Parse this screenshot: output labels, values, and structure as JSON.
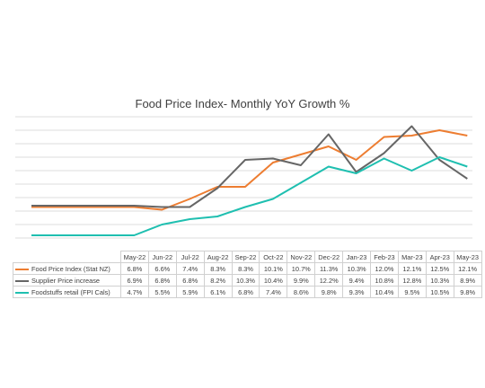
{
  "chart_data": {
    "type": "line",
    "title": "Food Price Index- Monthly YoY Growth %",
    "categories": [
      "May-22",
      "Jun-22",
      "Jul-22",
      "Aug-22",
      "Sep-22",
      "Oct-22",
      "Nov-22",
      "Dec-22",
      "Jan-23",
      "Feb-23",
      "Mar-23",
      "Apr-23",
      "May-23"
    ],
    "series": [
      {
        "name": "Food Price Index (Stat NZ)",
        "color": "#ED7D31",
        "values": [
          6.8,
          6.6,
          7.4,
          8.3,
          8.3,
          10.1,
          10.7,
          11.3,
          10.3,
          12.0,
          12.1,
          12.5,
          12.1
        ],
        "labels": [
          "6.8%",
          "6.6%",
          "7.4%",
          "8.3%",
          "8.3%",
          "10.1%",
          "10.7%",
          "11.3%",
          "10.3%",
          "12.0%",
          "12.1%",
          "12.5%",
          "12.1%"
        ]
      },
      {
        "name": "Supplier Price increase",
        "color": "#666666",
        "values": [
          6.9,
          6.8,
          6.8,
          8.2,
          10.3,
          10.4,
          9.9,
          12.2,
          9.4,
          10.8,
          12.8,
          10.3,
          8.9
        ],
        "labels": [
          "6.9%",
          "6.8%",
          "6.8%",
          "8.2%",
          "10.3%",
          "10.4%",
          "9.9%",
          "12.2%",
          "9.4%",
          "10.8%",
          "12.8%",
          "10.3%",
          "8.9%"
        ]
      },
      {
        "name": "Foodstuffs retail (FPI Cals)",
        "color": "#1FBFB0",
        "values": [
          4.7,
          5.5,
          5.9,
          6.1,
          6.8,
          7.4,
          8.6,
          9.8,
          9.3,
          10.4,
          9.5,
          10.5,
          9.8
        ],
        "labels": [
          "4.7%",
          "5.5%",
          "5.9%",
          "6.1%",
          "6.8%",
          "7.4%",
          "8.6%",
          "9.8%",
          "9.3%",
          "10.4%",
          "9.5%",
          "10.5%",
          "9.8%"
        ]
      }
    ],
    "ylim": [
      3.5,
      13.5
    ],
    "ytick_step": 1,
    "grid": true,
    "legend": "data-table-below"
  }
}
